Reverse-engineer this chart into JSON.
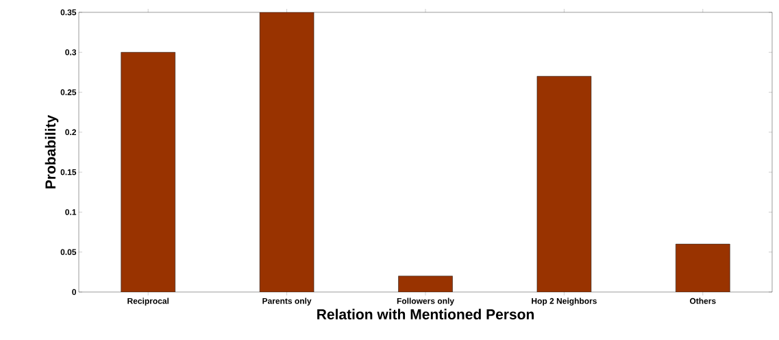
{
  "chart_data": {
    "type": "bar",
    "xlabel": "Relation with Mentioned Person",
    "ylabel": "Probability",
    "categories": [
      "Reciprocal",
      "Parents only",
      "Followers only",
      "Hop 2 Neighbors",
      "Others"
    ],
    "values": [
      0.3,
      0.35,
      0.02,
      0.27,
      0.06
    ],
    "color": "#993300",
    "ylim": [
      0,
      0.35
    ],
    "yticks": [
      0,
      0.05,
      0.1,
      0.15,
      0.2,
      0.25,
      0.3,
      0.35
    ],
    "grid": false
  }
}
